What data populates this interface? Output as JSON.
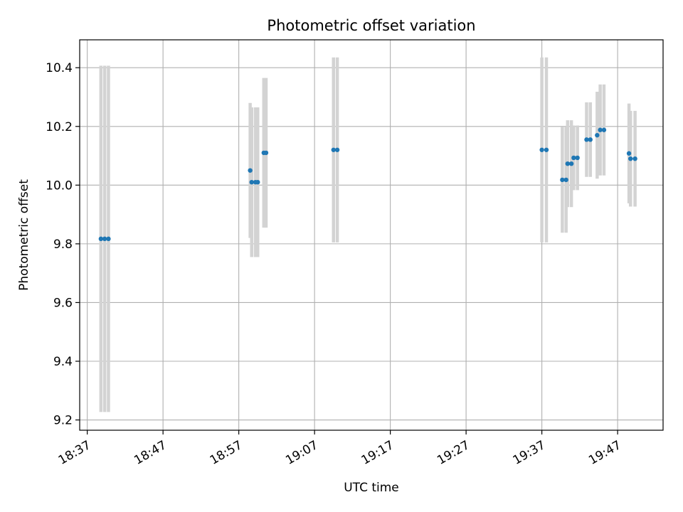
{
  "chart_data": {
    "type": "scatter",
    "title": "Photometric offset variation",
    "xlabel": "UTC time",
    "ylabel": "Photometric offset",
    "xlim": [
      "18:36:00",
      "19:53:00"
    ],
    "ylim": [
      9.165,
      10.495
    ],
    "grid": true,
    "x_ticks": [
      "18:37",
      "18:47",
      "18:57",
      "19:07",
      "19:17",
      "19:27",
      "19:37",
      "19:47"
    ],
    "y_ticks": [
      9.2,
      9.4,
      9.6,
      9.8,
      10.0,
      10.2,
      10.4
    ],
    "y_tick_labels": [
      "9.2",
      "9.4",
      "9.6",
      "9.8",
      "10.0",
      "10.2",
      "10.4"
    ],
    "point_color": "#1f77b4",
    "errorbar_color": "#d3d3d3",
    "points": [
      {
        "x": "18:38:48",
        "y": 9.817,
        "yerr": 0.59
      },
      {
        "x": "18:39:18",
        "y": 9.817,
        "yerr": 0.59
      },
      {
        "x": "18:39:48",
        "y": 9.817,
        "yerr": 0.59
      },
      {
        "x": "18:58:30",
        "y": 10.05,
        "yerr": 0.23
      },
      {
        "x": "18:58:42",
        "y": 10.01,
        "yerr": 0.255
      },
      {
        "x": "18:59:12",
        "y": 10.01,
        "yerr": 0.255
      },
      {
        "x": "18:59:30",
        "y": 10.01,
        "yerr": 0.255
      },
      {
        "x": "19:00:18",
        "y": 10.11,
        "yerr": 0.255
      },
      {
        "x": "19:00:36",
        "y": 10.11,
        "yerr": 0.255
      },
      {
        "x": "19:09:30",
        "y": 10.12,
        "yerr": 0.315
      },
      {
        "x": "19:10:00",
        "y": 10.12,
        "yerr": 0.315
      },
      {
        "x": "19:37:00",
        "y": 10.12,
        "yerr": 0.315
      },
      {
        "x": "19:37:36",
        "y": 10.12,
        "yerr": 0.315
      },
      {
        "x": "19:39:42",
        "y": 10.018,
        "yerr": 0.18
      },
      {
        "x": "19:40:12",
        "y": 10.018,
        "yerr": 0.18
      },
      {
        "x": "19:40:24",
        "y": 10.073,
        "yerr": 0.148
      },
      {
        "x": "19:40:54",
        "y": 10.073,
        "yerr": 0.148
      },
      {
        "x": "19:41:12",
        "y": 10.093,
        "yerr": 0.11
      },
      {
        "x": "19:41:42",
        "y": 10.093,
        "yerr": 0.11
      },
      {
        "x": "19:42:54",
        "y": 10.155,
        "yerr": 0.127
      },
      {
        "x": "19:43:24",
        "y": 10.155,
        "yerr": 0.127
      },
      {
        "x": "19:44:18",
        "y": 10.17,
        "yerr": 0.148
      },
      {
        "x": "19:44:42",
        "y": 10.188,
        "yerr": 0.155
      },
      {
        "x": "19:45:12",
        "y": 10.188,
        "yerr": 0.155
      },
      {
        "x": "19:48:30",
        "y": 10.108,
        "yerr": 0.17
      },
      {
        "x": "19:48:42",
        "y": 10.09,
        "yerr": 0.163
      },
      {
        "x": "19:49:18",
        "y": 10.09,
        "yerr": 0.163
      }
    ]
  }
}
